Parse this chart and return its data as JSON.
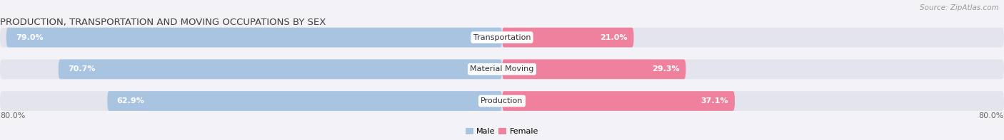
{
  "title": "PRODUCTION, TRANSPORTATION AND MOVING OCCUPATIONS BY SEX",
  "source": "Source: ZipAtlas.com",
  "categories": [
    "Transportation",
    "Material Moving",
    "Production"
  ],
  "male_values": [
    79.0,
    70.7,
    62.9
  ],
  "female_values": [
    21.0,
    29.3,
    37.1
  ],
  "male_color": "#a8c4e0",
  "female_color": "#f0819e",
  "background_color": "#f2f2f7",
  "bar_bg_color": "#e4e4ef",
  "axis_max": 80.0,
  "x_left_label": "80.0%",
  "x_right_label": "80.0%",
  "title_fontsize": 9.5,
  "source_fontsize": 7.5,
  "bar_label_fontsize": 8,
  "category_fontsize": 8
}
